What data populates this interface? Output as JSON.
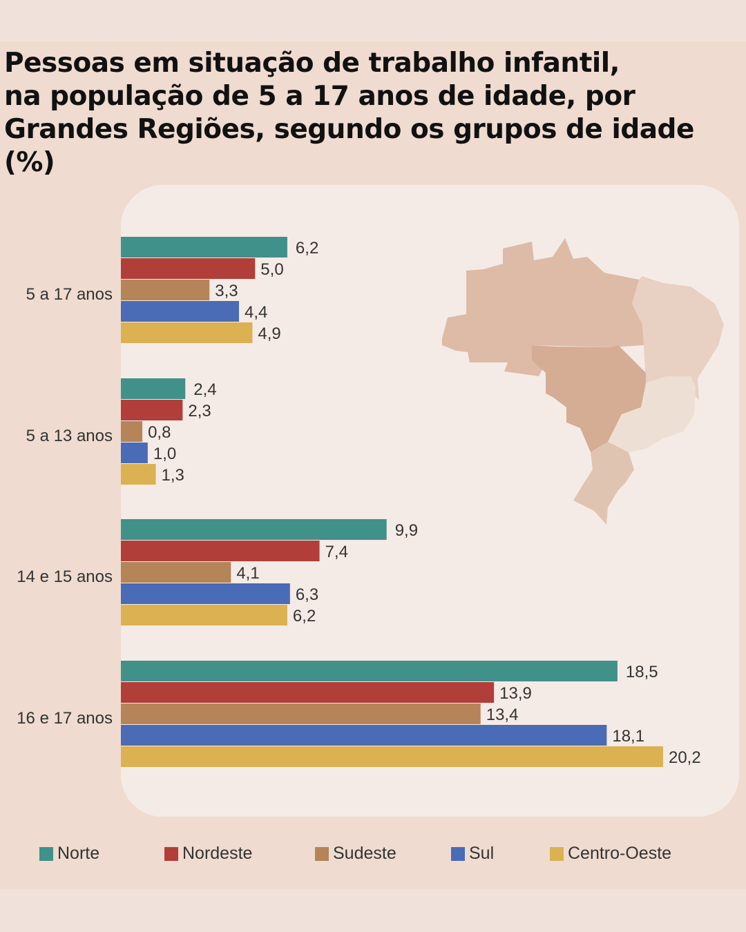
{
  "chart_data": {
    "type": "bar",
    "orientation": "horizontal",
    "title": "Pessoas em situação de trabalho infantil,\nna população de 5 a 17 anos de idade, por\nGrandes Regiões, segundo os grupos de idade (%)",
    "categories": [
      "5 a 17 anos",
      "5 a 13 anos",
      "14 e 15 anos",
      "16 e 17 anos"
    ],
    "series": [
      {
        "name": "Norte",
        "color": "#3f918a",
        "values": [
          6.2,
          2.4,
          9.9,
          18.5
        ],
        "labels": [
          "6,2",
          "2,4",
          "9,9",
          "18,5"
        ]
      },
      {
        "name": "Nordeste",
        "color": "#b13e38",
        "values": [
          5.0,
          2.3,
          7.4,
          13.9
        ],
        "labels": [
          "5,0",
          "2,3",
          "7,4",
          "13,9"
        ]
      },
      {
        "name": "Sudeste",
        "color": "#b58459",
        "values": [
          3.3,
          0.8,
          4.1,
          13.4
        ],
        "labels": [
          "3,3",
          "0,8",
          "4,1",
          "13,4"
        ]
      },
      {
        "name": "Sul",
        "color": "#4a6bb5",
        "values": [
          4.4,
          1.0,
          6.3,
          18.1
        ],
        "labels": [
          "4,4",
          "1,0",
          "6,3",
          "18,1"
        ]
      },
      {
        "name": "Centro-Oeste",
        "color": "#dbb152",
        "values": [
          4.9,
          1.3,
          6.2,
          20.2
        ],
        "labels": [
          "4,9",
          "1,3",
          "6,2",
          "20,2"
        ]
      }
    ],
    "xlim": [
      0,
      23
    ],
    "legend": "bottom",
    "grid": false
  }
}
